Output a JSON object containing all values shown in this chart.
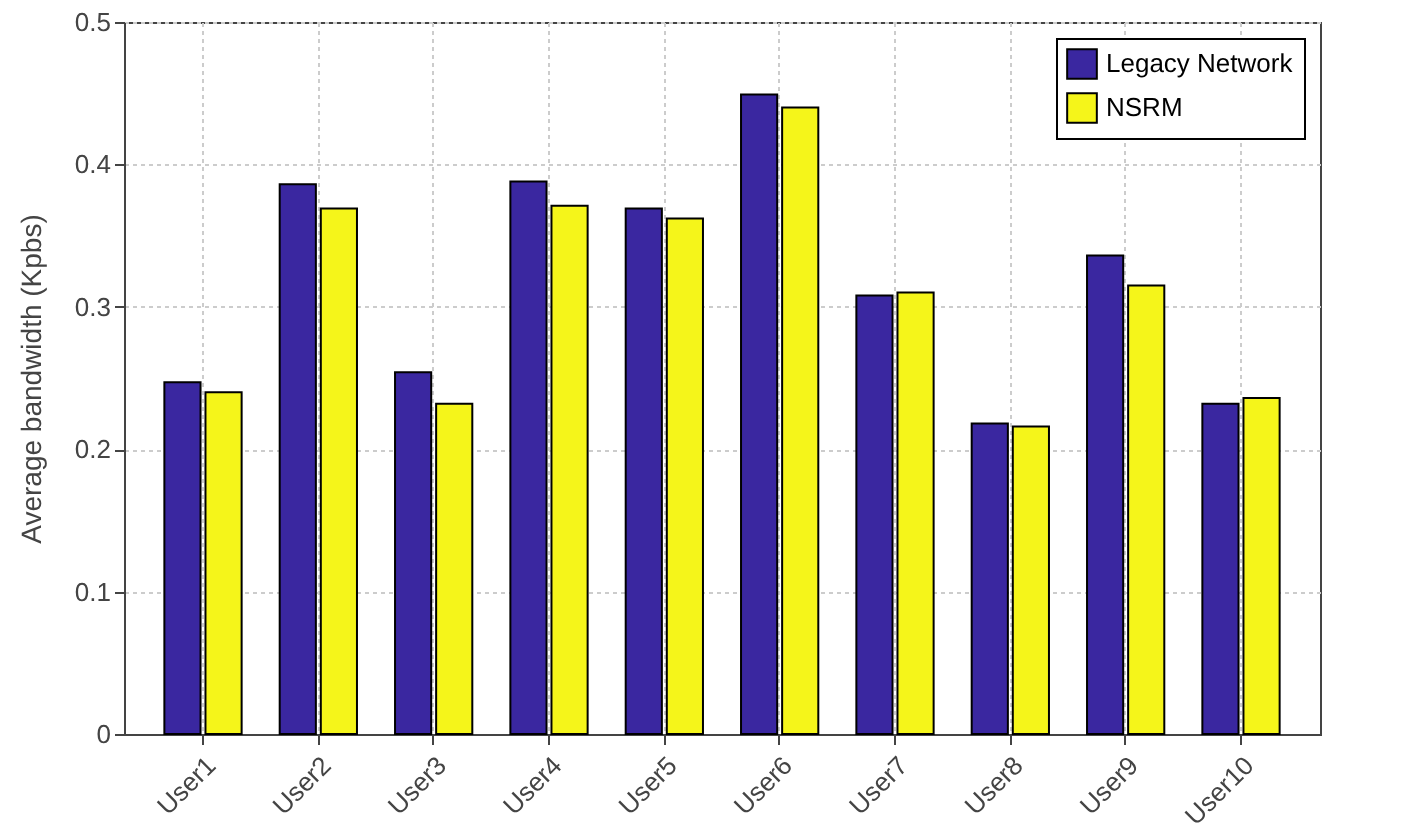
{
  "chart_data": {
    "type": "bar",
    "ylabel": "Average bandwidth (Kpbs)",
    "categories": [
      "User1",
      "User2",
      "User3",
      "User4",
      "User5",
      "User6",
      "User7",
      "User8",
      "User9",
      "User10"
    ],
    "series": [
      {
        "name": "Legacy Network",
        "color": "#3a27a0",
        "values": [
          0.247,
          0.386,
          0.254,
          0.388,
          0.369,
          0.449,
          0.308,
          0.218,
          0.336,
          0.232
        ]
      },
      {
        "name": "NSRM",
        "color": "#f5f51a",
        "values": [
          0.24,
          0.369,
          0.232,
          0.371,
          0.362,
          0.44,
          0.31,
          0.216,
          0.315,
          0.236
        ]
      }
    ],
    "ylim": [
      0,
      0.5
    ],
    "yticks": [
      0,
      0.1,
      0.2,
      0.3,
      0.4,
      0.5
    ],
    "grid": true,
    "legend": "top right"
  }
}
